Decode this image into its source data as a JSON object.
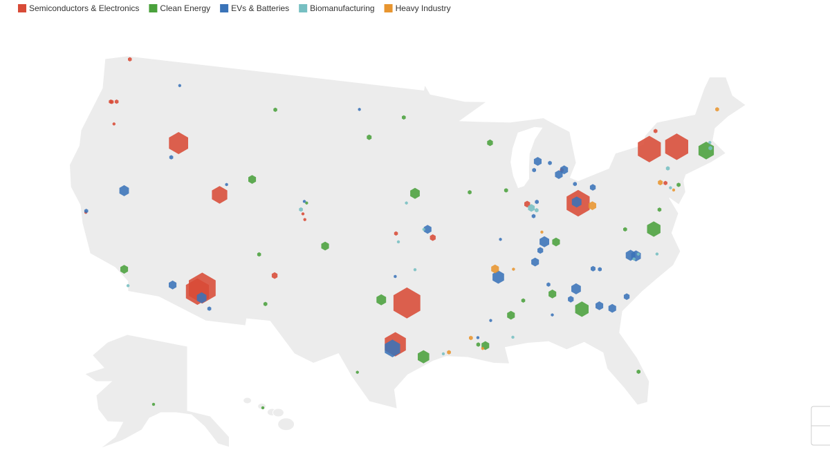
{
  "chart_data": {
    "type": "hexmap",
    "legend_position": "top-left",
    "series": [
      {
        "name": "Semiconductors & Electronics",
        "color": "#d84b37",
        "lon": [
          -122.5,
          -122.4,
          -122.9,
          -122.8,
          -122.0,
          -116.2,
          -111.9,
          -121.9,
          -105.0,
          -104.8,
          -106.6,
          -112.1,
          -111.8,
          -96.6,
          -97.4,
          -97.5,
          -94.6,
          -82.8,
          -76.1,
          -73.8,
          -75.2,
          -86.9,
          -83.7,
          -75.5
        ],
        "lat": [
          48.8,
          45.6,
          45.5,
          45.5,
          44.0,
          43.6,
          40.4,
          37.4,
          39.7,
          39.3,
          35.1,
          33.3,
          33.6,
          33.6,
          30.6,
          38.6,
          38.3,
          40.1,
          43.2,
          43.0,
          44.4,
          40.4,
          42.6,
          40.6
        ],
        "size": [
          2,
          2,
          2,
          2,
          1.5,
          10,
          8,
          1.5,
          1.5,
          1.5,
          3,
          12,
          14,
          14,
          11,
          2,
          3,
          12,
          12,
          12,
          2,
          3,
          2,
          2
        ]
      },
      {
        "name": "Clean Energy",
        "color": "#4aa13c",
        "lon": [
          -108.5,
          -109.5,
          -104.8,
          -103.0,
          -108.0,
          -107.0,
          -117.8,
          -149.9,
          -157.9,
          -100.0,
          -97.0,
          -96.0,
          -98.5,
          -100.0,
          -95.4,
          -89.5,
          -91.5,
          -88.5,
          -89.0,
          -88.0,
          -85.8,
          -85.0,
          -83.8,
          -79.5,
          -77.3,
          -76.5,
          -71.5,
          -80.6,
          -74.5,
          -91.0,
          -91.5
        ],
        "lat": [
          47.0,
          41.8,
          40.5,
          37.5,
          36.5,
          33.0,
          34.0,
          61.2,
          21.3,
          45.5,
          47.0,
          41.5,
          33.8,
          28.5,
          29.7,
          45.0,
          41.5,
          41.5,
          32.5,
          33.5,
          33.8,
          37.5,
          32.5,
          37.8,
          37.5,
          38.8,
          42.3,
          27.5,
          40.3,
          30.4,
          30.5
        ],
        "size": [
          2,
          4,
          1.5,
          4,
          2,
          2,
          4,
          1.5,
          1.5,
          2.5,
          2,
          5,
          5,
          1.5,
          6,
          3,
          2,
          2,
          4,
          2,
          4,
          4,
          7,
          2,
          7,
          2,
          8,
          2,
          2,
          4,
          2
        ]
      },
      {
        "name": "EVs & Batteries",
        "color": "#3a73b8",
        "lon": [
          -117.4,
          -101.0,
          -116.5,
          -119.5,
          -121.9,
          -111.5,
          -105.0,
          -114.0,
          -111.7,
          -111.0,
          -95.0,
          -97.5,
          -97.6,
          -85.6,
          -84.6,
          -83.5,
          -84.0,
          -86.0,
          -82.9,
          -82.8,
          -81.4,
          -86.1,
          -86.5,
          -85.9,
          -86.3,
          -86.8,
          -89.7,
          -84.0,
          -84.5,
          -82.5,
          -81.6,
          -80.4,
          -79.5,
          -79.1,
          -82.5,
          -82.0,
          -86.0,
          -86.0,
          -90.5,
          -91.5,
          -89.3
        ],
        "lat": [
          47.7,
          47.5,
          42.5,
          39.5,
          37.5,
          41.2,
          40.6,
          33.5,
          32.9,
          32.2,
          38.9,
          35.5,
          30.3,
          43.4,
          43.2,
          42.6,
          42.3,
          42.8,
          40.2,
          41.5,
          41.1,
          40.5,
          39.5,
          37.6,
          37.0,
          36.2,
          35.3,
          34.0,
          33.3,
          32.6,
          32.3,
          33.0,
          35.9,
          35.8,
          35.3,
          35.2,
          34.5,
          32.3,
          32.2,
          31.0,
          38.0
        ],
        "size": [
          1.5,
          1.5,
          2,
          5,
          2,
          1.5,
          1.5,
          4,
          5,
          2,
          4,
          1.5,
          8,
          4,
          2,
          4,
          4,
          2,
          5,
          2,
          3,
          2,
          2,
          5,
          3,
          4,
          6,
          5,
          3,
          4,
          4,
          3,
          5,
          5,
          2.5,
          2,
          2,
          1.5,
          1.5,
          1.5,
          1.5
        ]
      },
      {
        "name": "Biomanufacturing",
        "color": "#76bfc2",
        "lon": [
          -117.2,
          -105.2,
          -96.7,
          -97.3,
          -96.0,
          -95.3,
          -86.6,
          -86.2,
          -78.9,
          -75.2,
          -75.0,
          -71.1,
          -71.0,
          -77.5,
          -89.0,
          -94.0,
          -79.3
        ],
        "lat": [
          32.9,
          40.0,
          40.8,
          38.0,
          36.0,
          38.9,
          40.1,
          39.9,
          35.9,
          40.2,
          41.6,
          42.4,
          42.8,
          35.7,
          30.9,
          29.9,
          35.6
        ],
        "size": [
          1.5,
          2,
          1.5,
          1.5,
          1.5,
          1.5,
          3.5,
          2,
          1.5,
          1.5,
          2,
          2,
          1.5,
          1.5,
          1.5,
          1.5,
          1.5
        ]
      },
      {
        "name": "Heavy Industry",
        "color": "#e8952f",
        "lon": [
          -69.5,
          -89.9,
          -92.0,
          -93.6,
          -81.7,
          -75.9,
          -86.0,
          -75.0,
          -88.5,
          -91.2
        ],
        "lat": [
          45.0,
          35.9,
          31.0,
          30.0,
          39.8,
          40.7,
          38.3,
          40.0,
          35.8,
          30.2
        ],
        "size": [
          2,
          4,
          2,
          2,
          4,
          2.5,
          1.5,
          1.5,
          1.5,
          1.5
        ]
      }
    ]
  }
}
